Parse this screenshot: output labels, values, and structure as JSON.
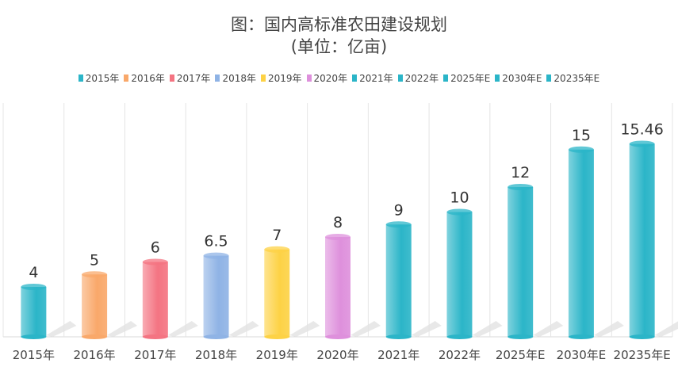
{
  "chart_data": {
    "type": "bar",
    "title": "图：国内高标准农田建设规划",
    "subtitle": "(单位：亿亩)",
    "categories": [
      "2015年",
      "2016年",
      "2017年",
      "2018年",
      "2019年",
      "2020年",
      "2021年",
      "2022年",
      "2025年E",
      "2030年E",
      "20235年E"
    ],
    "values": [
      4,
      5,
      6,
      6.5,
      7,
      8,
      9,
      10,
      12,
      15,
      15.46
    ],
    "value_labels": [
      "4",
      "5",
      "6",
      "6.5",
      "7",
      "8",
      "9",
      "10",
      "12",
      "15",
      "15.46"
    ],
    "colors": [
      "#2bb5c8",
      "#f9a86a",
      "#f47482",
      "#8fb3e5",
      "#fdd245",
      "#de90dc",
      "#2bb5c8",
      "#2bb5c8",
      "#2bb5c8",
      "#2bb5c8",
      "#2bb5c8"
    ],
    "ylim": [
      0,
      17
    ],
    "legend": "top",
    "grid": "vertical category separators",
    "style": "3d cylinder"
  }
}
